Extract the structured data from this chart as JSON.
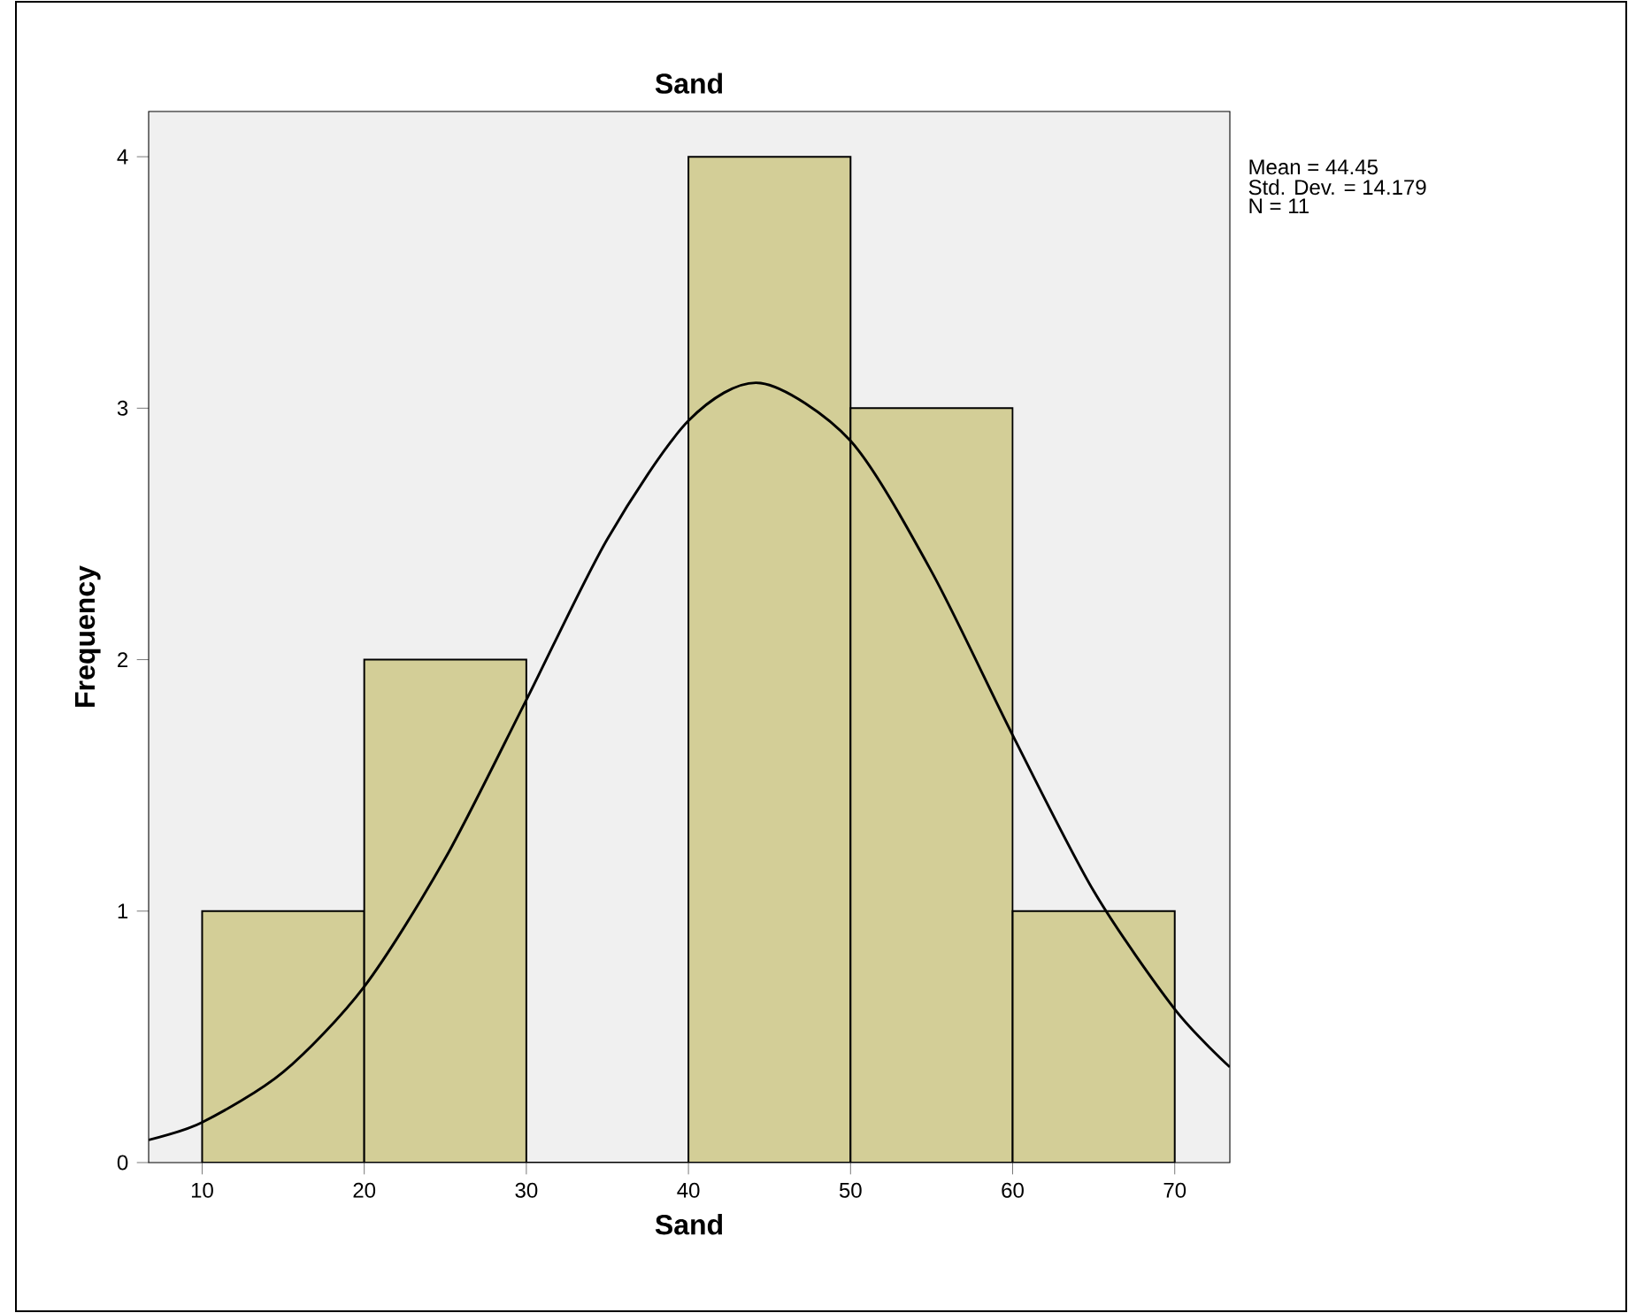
{
  "chart_data": {
    "type": "histogram",
    "title": "Sand",
    "xlabel": "Sand",
    "ylabel": "Frequency",
    "series": [
      {
        "bins": [
          10,
          20,
          30,
          40,
          50,
          60,
          70
        ],
        "values": [
          1,
          2,
          0,
          4,
          3,
          1
        ],
        "color": "#d3ce97"
      },
      {
        "type": "line",
        "color": "#000000",
        "x": [
          6.7,
          10,
          15,
          20,
          25,
          30,
          35,
          40,
          44.45,
          50,
          55,
          60,
          65,
          70,
          73.4
        ],
        "values": [
          0.09,
          0.16,
          0.36,
          0.7,
          1.21,
          1.84,
          2.48,
          2.95,
          3.1,
          2.87,
          2.35,
          1.7,
          1.08,
          0.61,
          0.38
        ]
      }
    ],
    "xlim": [
      6.7,
      73.4
    ],
    "ylim": [
      0,
      4.18
    ],
    "xticks": [
      10,
      20,
      30,
      40,
      50,
      60,
      70
    ],
    "yticks": [
      0,
      1,
      2,
      3,
      4
    ],
    "annotations": [
      "Mean = 44.45",
      "Std. Dev. = 14.179",
      "N = 11"
    ]
  }
}
